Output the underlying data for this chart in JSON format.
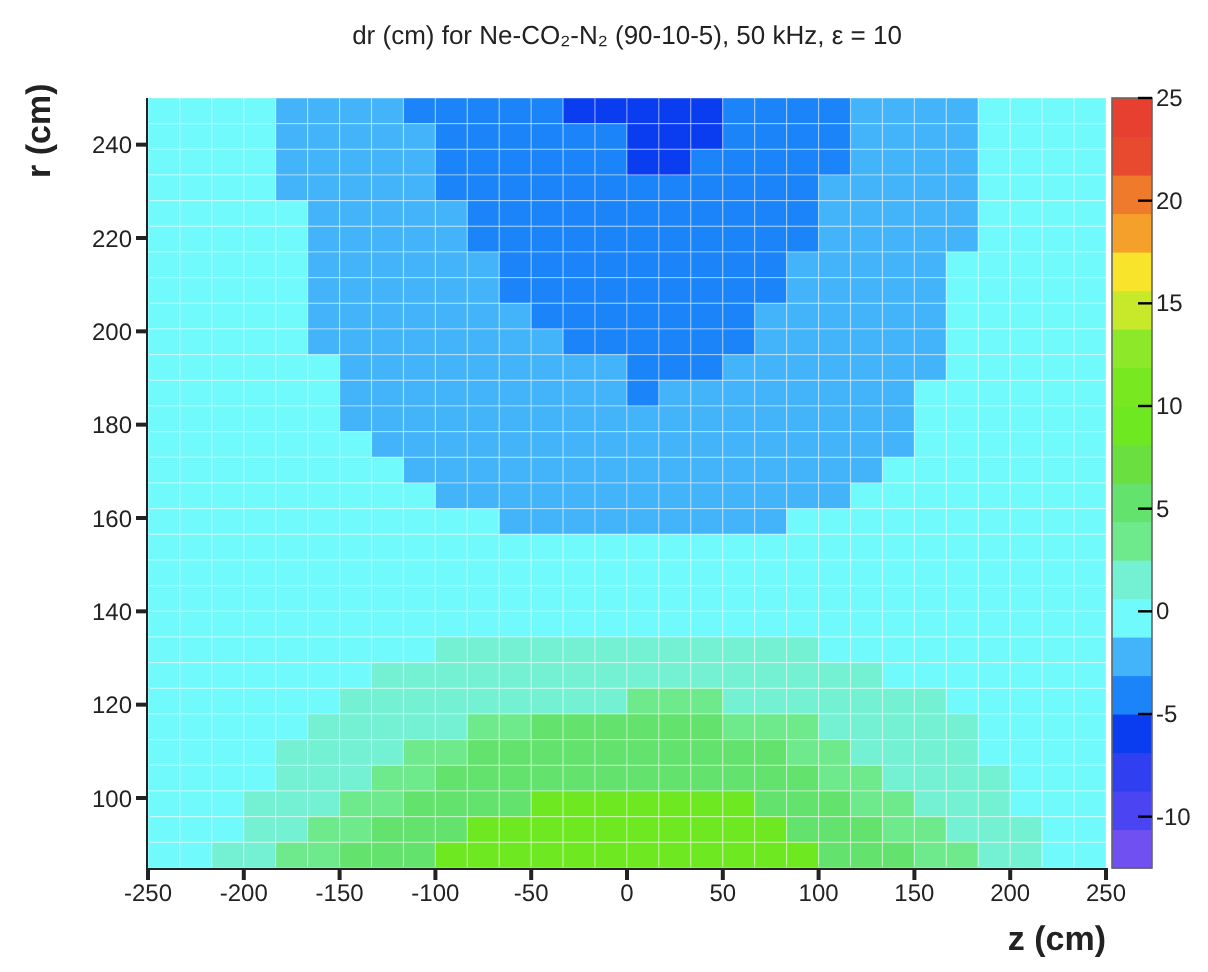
{
  "chart_data": {
    "type": "heatmap",
    "title": "dr (cm) for Ne-CO₂-N₂ (90-10-5), 50 kHz, ε = 10",
    "xlabel": "z (cm)",
    "ylabel": "r (cm)",
    "xlim": [
      -250,
      250
    ],
    "xticks": [
      -250,
      -200,
      -150,
      -100,
      -50,
      0,
      50,
      100,
      150,
      200,
      250
    ],
    "ylim": [
      85,
      250
    ],
    "yticks": [
      100,
      120,
      140,
      160,
      180,
      200,
      220,
      240
    ],
    "clim": [
      -12.5,
      25
    ],
    "cticks": [
      -10,
      -5,
      0,
      5,
      10,
      15,
      20,
      25
    ],
    "colors": [
      "#7050f0",
      "#4a44f2",
      "#3040f0",
      "#0a3cf0",
      "#1a84f8",
      "#44b4fa",
      "#70fafc",
      "#74f0d2",
      "#6eea8c",
      "#64e26e",
      "#6ae040",
      "#6ee820",
      "#78e820",
      "#8ee82a",
      "#c8e82a",
      "#f8e42a",
      "#f6a02c",
      "#f07a2c",
      "#e84a30",
      "#e84030"
    ],
    "cells": [
      [
        0,
        0,
        0,
        0,
        -2,
        -2,
        -2,
        -2,
        -4,
        -4,
        -4,
        -4,
        -4,
        -6,
        -6,
        -6,
        -6,
        -6,
        -4,
        -4,
        -4,
        -4,
        -2,
        -2,
        -2,
        -2,
        0,
        0,
        0,
        0
      ],
      [
        0,
        0,
        0,
        0,
        -2,
        -2,
        -2,
        -2,
        -2,
        -4,
        -4,
        -4,
        -4,
        -4,
        -4,
        -6,
        -6,
        -6,
        -4,
        -4,
        -4,
        -4,
        -2,
        -2,
        -2,
        -2,
        0,
        0,
        0,
        0
      ],
      [
        0,
        0,
        0,
        0,
        -2,
        -2,
        -2,
        -2,
        -2,
        -4,
        -4,
        -4,
        -4,
        -4,
        -4,
        -6,
        -6,
        -4,
        -4,
        -4,
        -4,
        -4,
        -2,
        -2,
        -2,
        -2,
        0,
        0,
        0,
        0
      ],
      [
        0,
        0,
        0,
        0,
        -2,
        -2,
        -2,
        -2,
        -2,
        -4,
        -4,
        -4,
        -4,
        -4,
        -4,
        -4,
        -4,
        -4,
        -4,
        -4,
        -4,
        -2,
        -2,
        -2,
        -2,
        -2,
        0,
        0,
        0,
        0
      ],
      [
        0,
        0,
        0,
        0,
        0,
        -2,
        -2,
        -2,
        -2,
        -2,
        -4,
        -4,
        -4,
        -4,
        -4,
        -4,
        -4,
        -4,
        -4,
        -4,
        -4,
        -2,
        -2,
        -2,
        -2,
        -2,
        0,
        0,
        0,
        0
      ],
      [
        0,
        0,
        0,
        0,
        0,
        -2,
        -2,
        -2,
        -2,
        -2,
        -4,
        -4,
        -4,
        -4,
        -4,
        -4,
        -4,
        -4,
        -4,
        -4,
        -4,
        -2,
        -2,
        -2,
        -2,
        -2,
        0,
        0,
        0,
        0
      ],
      [
        0,
        0,
        0,
        0,
        0,
        -2,
        -2,
        -2,
        -2,
        -2,
        -2,
        -4,
        -4,
        -4,
        -4,
        -4,
        -4,
        -4,
        -4,
        -4,
        -2,
        -2,
        -2,
        -2,
        -2,
        0,
        0,
        0,
        0,
        0
      ],
      [
        0,
        0,
        0,
        0,
        0,
        -2,
        -2,
        -2,
        -2,
        -2,
        -2,
        -4,
        -4,
        -4,
        -4,
        -4,
        -4,
        -4,
        -4,
        -4,
        -2,
        -2,
        -2,
        -2,
        -2,
        0,
        0,
        0,
        0,
        0
      ],
      [
        0,
        0,
        0,
        0,
        0,
        -2,
        -2,
        -2,
        -2,
        -2,
        -2,
        -2,
        -4,
        -4,
        -4,
        -4,
        -4,
        -4,
        -4,
        -2,
        -2,
        -2,
        -2,
        -2,
        -2,
        0,
        0,
        0,
        0,
        0
      ],
      [
        0,
        0,
        0,
        0,
        0,
        -2,
        -2,
        -2,
        -2,
        -2,
        -2,
        -2,
        -2,
        -4,
        -4,
        -4,
        -4,
        -4,
        -4,
        -2,
        -2,
        -2,
        -2,
        -2,
        -2,
        0,
        0,
        0,
        0,
        0
      ],
      [
        0,
        0,
        0,
        0,
        0,
        0,
        -2,
        -2,
        -2,
        -2,
        -2,
        -2,
        -2,
        -2,
        -2,
        -4,
        -4,
        -4,
        -2,
        -2,
        -2,
        -2,
        -2,
        -2,
        -2,
        0,
        0,
        0,
        0,
        0
      ],
      [
        0,
        0,
        0,
        0,
        0,
        0,
        -2,
        -2,
        -2,
        -2,
        -2,
        -2,
        -2,
        -2,
        -2,
        -4,
        -2,
        -2,
        -2,
        -2,
        -2,
        -2,
        -2,
        -2,
        0,
        0,
        0,
        0,
        0,
        0
      ],
      [
        0,
        0,
        0,
        0,
        0,
        0,
        -2,
        -2,
        -2,
        -2,
        -2,
        -2,
        -2,
        -2,
        -2,
        -2,
        -2,
        -2,
        -2,
        -2,
        -2,
        -2,
        -2,
        -2,
        0,
        0,
        0,
        0,
        0,
        0
      ],
      [
        0,
        0,
        0,
        0,
        0,
        0,
        0,
        -2,
        -2,
        -2,
        -2,
        -2,
        -2,
        -2,
        -2,
        -2,
        -2,
        -2,
        -2,
        -2,
        -2,
        -2,
        -2,
        -2,
        0,
        0,
        0,
        0,
        0,
        0
      ],
      [
        0,
        0,
        0,
        0,
        0,
        0,
        0,
        0,
        -2,
        -2,
        -2,
        -2,
        -2,
        -2,
        -2,
        -2,
        -2,
        -2,
        -2,
        -2,
        -2,
        -2,
        -2,
        0,
        0,
        0,
        0,
        0,
        0,
        0
      ],
      [
        0,
        0,
        0,
        0,
        0,
        0,
        0,
        0,
        0,
        -2,
        -2,
        -2,
        -2,
        -2,
        -2,
        -2,
        -2,
        -2,
        -2,
        -2,
        -2,
        -2,
        0,
        0,
        0,
        0,
        0,
        0,
        0,
        0
      ],
      [
        0,
        0,
        0,
        0,
        0,
        0,
        0,
        0,
        0,
        0,
        0,
        -2,
        -2,
        -2,
        -2,
        -2,
        -2,
        -2,
        -2,
        -2,
        0,
        0,
        0,
        0,
        0,
        0,
        0,
        0,
        0,
        0
      ],
      [
        0,
        0,
        0,
        0,
        0,
        0,
        0,
        0,
        0,
        0,
        0,
        0,
        0,
        0,
        0,
        0,
        0,
        0,
        0,
        0,
        0,
        0,
        0,
        0,
        0,
        0,
        0,
        0,
        0,
        0
      ],
      [
        0,
        0,
        0,
        0,
        0,
        0,
        0,
        0,
        0,
        0,
        0,
        0,
        0,
        0,
        0,
        0,
        0,
        0,
        0,
        0,
        0,
        0,
        0,
        0,
        0,
        0,
        0,
        0,
        0,
        0
      ],
      [
        0,
        0,
        0,
        0,
        0,
        0,
        0,
        0,
        0,
        0,
        0,
        0,
        0,
        0,
        0,
        0,
        0,
        0,
        0,
        0,
        0,
        0,
        0,
        0,
        0,
        0,
        0,
        0,
        0,
        0
      ],
      [
        0,
        0,
        0,
        0,
        0,
        0,
        0,
        0,
        0,
        0,
        0,
        0,
        0,
        0,
        0,
        0,
        0,
        0,
        0,
        0,
        0,
        0,
        0,
        0,
        0,
        0,
        0,
        0,
        0,
        0
      ],
      [
        0,
        0,
        0,
        0,
        0,
        0,
        0,
        0,
        0,
        1.5,
        1.5,
        1.5,
        1.5,
        1.5,
        1.5,
        1.5,
        1.5,
        1.5,
        1.5,
        1.5,
        1.5,
        0,
        0,
        0,
        0,
        0,
        0,
        0,
        0,
        0
      ],
      [
        0,
        0,
        0,
        0,
        0,
        0,
        0,
        1.5,
        1.5,
        1.5,
        1.5,
        1.5,
        1.5,
        1.5,
        1.5,
        1.5,
        1.5,
        1.5,
        1.5,
        1.5,
        1.5,
        1.5,
        1.5,
        0,
        0,
        0,
        0,
        0,
        0,
        0
      ],
      [
        0,
        0,
        0,
        0,
        0,
        0,
        1.5,
        1.5,
        1.5,
        1.5,
        1.5,
        1.5,
        1.5,
        1.5,
        1.5,
        3.5,
        3.5,
        3.5,
        1.5,
        1.5,
        1.5,
        1.5,
        1.5,
        1.5,
        1.5,
        0,
        0,
        0,
        0,
        0
      ],
      [
        0,
        0,
        0,
        0,
        0,
        1.5,
        1.5,
        1.5,
        1.5,
        1.5,
        3.5,
        3.5,
        5.5,
        5.5,
        5.5,
        5.5,
        5.5,
        5.5,
        3.5,
        3.5,
        3.5,
        1.5,
        1.5,
        1.5,
        1.5,
        1.5,
        0,
        0,
        0,
        0
      ],
      [
        0,
        0,
        0,
        0,
        1.5,
        1.5,
        1.5,
        1.5,
        3.5,
        3.5,
        5.5,
        5.5,
        5.5,
        5.5,
        5.5,
        5.5,
        5.5,
        5.5,
        5.5,
        5.5,
        3.5,
        3.5,
        1.5,
        1.5,
        1.5,
        1.5,
        0,
        0,
        0,
        0
      ],
      [
        0,
        0,
        0,
        0,
        1.5,
        1.5,
        1.5,
        3.5,
        3.5,
        5.5,
        5.5,
        5.5,
        5.5,
        5.5,
        5.5,
        5.5,
        5.5,
        5.5,
        5.5,
        5.5,
        5.5,
        3.5,
        3.5,
        1.5,
        1.5,
        1.5,
        1.5,
        0,
        0,
        0
      ],
      [
        0,
        0,
        0,
        1.5,
        1.5,
        1.5,
        3.5,
        3.5,
        5.5,
        5.5,
        5.5,
        5.5,
        9,
        9,
        9,
        9,
        9,
        9,
        9,
        5.5,
        5.5,
        5.5,
        3.5,
        3.5,
        1.5,
        1.5,
        1.5,
        0,
        0,
        0
      ],
      [
        0,
        0,
        0,
        1.5,
        1.5,
        3.5,
        3.5,
        5.5,
        5.5,
        5.5,
        9,
        9,
        9,
        9,
        9,
        9,
        9,
        9,
        9,
        9,
        5.5,
        5.5,
        5.5,
        3.5,
        3.5,
        1.5,
        1.5,
        1.5,
        0,
        0
      ],
      [
        0,
        0,
        1.5,
        1.5,
        3.5,
        3.5,
        5.5,
        5.5,
        5.5,
        9,
        9,
        9,
        9,
        9,
        9,
        9,
        9,
        9,
        9,
        9,
        9,
        5.5,
        5.5,
        5.5,
        3.5,
        3.5,
        1.5,
        1.5,
        0,
        0
      ]
    ]
  }
}
